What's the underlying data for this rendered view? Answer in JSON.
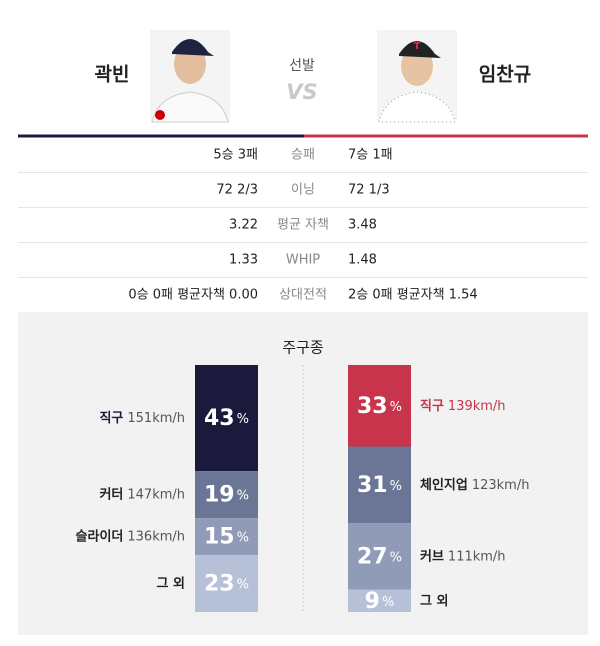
{
  "header": {
    "left_pitcher": "곽빈",
    "right_pitcher": "임찬규",
    "label": "선발",
    "vs": "VS"
  },
  "stats": [
    {
      "label": "승패",
      "left": "5승 3패",
      "right": "7승 1패"
    },
    {
      "label": "이닝",
      "left": "72 2/3",
      "right": "72 1/3"
    },
    {
      "label": "평균 자책",
      "left": "3.22",
      "right": "3.48"
    },
    {
      "label": "WHIP",
      "left": "1.33",
      "right": "1.48"
    },
    {
      "label": "상대전적",
      "left": "0승 0패 평균자책 0.00",
      "right": "2승 0패 평균자책 1.54"
    }
  ],
  "pitches": {
    "title": "주구종",
    "unit": "%",
    "left": [
      {
        "name": "직구",
        "speed": "151km/h",
        "value": 43,
        "color": "#1b1a3c"
      },
      {
        "name": "커터",
        "speed": "147km/h",
        "value": 19,
        "color": "#6b7696"
      },
      {
        "name": "슬라이더",
        "speed": "136km/h",
        "value": 15,
        "color": "#909bb8"
      },
      {
        "name": "그 외",
        "speed": null,
        "value": 23,
        "color": "#b6c0d6"
      }
    ],
    "right": [
      {
        "name": "직구",
        "speed": "139km/h",
        "value": 33,
        "color": "#c8344b"
      },
      {
        "name": "체인지업",
        "speed": "123km/h",
        "value": 31,
        "color": "#6b7696"
      },
      {
        "name": "커브",
        "speed": "111km/h",
        "value": 27,
        "color": "#909bb8"
      },
      {
        "name": "그 외",
        "speed": null,
        "value": 9,
        "color": "#b6c0d6"
      }
    ]
  }
}
